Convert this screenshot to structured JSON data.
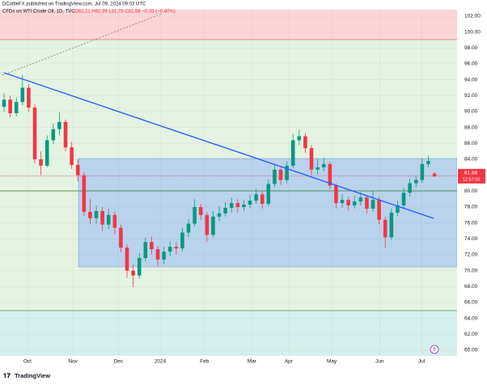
{
  "chart_data": {
    "type": "candlestick",
    "header": "DCottleFX published on TradingView.com, Jul 09, 2024 09:03 UTC",
    "symbol": "CFDs on WTI Crude Oil, 1D, TVC",
    "ohlc_legend": "O82.21 H82.39 L81.76 C81.88 −0.33 (−0.40%)",
    "open": [
      90.6,
      91.5,
      89.8,
      91.2,
      93.0,
      90.5,
      84.0,
      83.2,
      86.4,
      87.8,
      88.7,
      85.5,
      83.3,
      82.0,
      77.4,
      76.6,
      77.5,
      75.8,
      77.0,
      75.4,
      72.9,
      70.0,
      69.4,
      71.6,
      73.6,
      72.7,
      71.4,
      72.4,
      73.0,
      72.8,
      74.8,
      75.9,
      78.0,
      77.0,
      74.5,
      76.8,
      77.2,
      77.9,
      78.5,
      78.0,
      78.3,
      78.8,
      79.6,
      78.4,
      80.9,
      82.7,
      81.4,
      83.2,
      86.4,
      86.9,
      85.4,
      82.7,
      83.0,
      83.4,
      80.7,
      78.5,
      78.9,
      78.2,
      78.7,
      79.2,
      77.8,
      78.9,
      76.4,
      74.2,
      77.3,
      78.2,
      79.8,
      81.0,
      81.4,
      83.4,
      82.21
    ],
    "high": [
      92.3,
      92.0,
      91.8,
      94.6,
      93.5,
      90.9,
      85.0,
      87.0,
      88.5,
      89.9,
      89.0,
      86.2,
      84.0,
      82.4,
      79.0,
      78.2,
      78.0,
      77.8,
      77.4,
      75.8,
      73.3,
      70.8,
      72.2,
      74.2,
      74.3,
      73.1,
      73.0,
      73.7,
      73.6,
      75.4,
      76.5,
      79.0,
      78.4,
      77.4,
      77.5,
      78.1,
      78.6,
      79.2,
      79.0,
      78.9,
      79.5,
      80.3,
      80.0,
      81.5,
      83.3,
      83.0,
      83.8,
      87.2,
      87.7,
      87.3,
      85.8,
      84.0,
      84.2,
      83.7,
      81.0,
      79.6,
      79.3,
      79.4,
      79.9,
      79.5,
      80.0,
      79.3,
      76.8,
      77.8,
      78.8,
      80.4,
      81.6,
      82.0,
      84.1,
      84.5,
      82.39
    ],
    "low": [
      90.0,
      89.3,
      89.4,
      90.8,
      90.0,
      83.5,
      82.0,
      83.0,
      85.9,
      87.0,
      85.0,
      82.8,
      81.2,
      76.9,
      75.8,
      75.9,
      75.0,
      75.2,
      74.6,
      72.3,
      69.1,
      67.9,
      69.0,
      71.2,
      72.0,
      70.6,
      70.8,
      71.8,
      72.0,
      72.4,
      74.2,
      75.6,
      76.4,
      73.6,
      74.2,
      76.2,
      76.8,
      77.3,
      77.3,
      77.5,
      77.9,
      78.4,
      77.8,
      78.1,
      80.5,
      80.8,
      81.0,
      82.9,
      85.8,
      84.8,
      82.0,
      82.1,
      82.5,
      80.2,
      77.8,
      77.9,
      77.6,
      77.8,
      78.2,
      77.2,
      77.4,
      75.8,
      72.9,
      73.9,
      76.9,
      77.8,
      79.3,
      80.5,
      81.0,
      83.0,
      81.76
    ],
    "close": [
      91.5,
      89.8,
      91.2,
      93.0,
      90.5,
      84.0,
      83.2,
      86.4,
      87.8,
      88.7,
      85.5,
      83.3,
      82.0,
      77.4,
      76.6,
      77.5,
      75.8,
      77.0,
      75.4,
      72.9,
      70.0,
      69.4,
      71.6,
      73.6,
      72.7,
      71.4,
      72.4,
      73.0,
      72.8,
      74.8,
      75.9,
      78.0,
      77.0,
      74.5,
      76.8,
      77.2,
      77.9,
      78.5,
      78.0,
      78.3,
      78.8,
      79.6,
      78.4,
      80.9,
      82.7,
      81.4,
      83.2,
      86.4,
      86.9,
      85.4,
      82.7,
      83.0,
      83.4,
      80.7,
      78.5,
      78.9,
      78.2,
      78.7,
      79.2,
      77.8,
      78.9,
      76.4,
      74.2,
      77.3,
      78.2,
      79.8,
      81.0,
      81.4,
      83.4,
      83.8,
      81.88
    ],
    "colors": {
      "up": "#089981",
      "down": "#f23645"
    },
    "xlim": [
      -0.66,
      73.68
    ],
    "xticks": [
      {
        "value": 3.8,
        "label": "Oct"
      },
      {
        "value": 11.2,
        "label": "Nov"
      },
      {
        "value": 18.6,
        "label": "Dec"
      },
      {
        "value": 25.4,
        "label": "2024"
      },
      {
        "value": 32.6,
        "label": "Feb"
      },
      {
        "value": 40.3,
        "label": "Mar"
      },
      {
        "value": 46.3,
        "label": "Apr"
      },
      {
        "value": 53.3,
        "label": "May"
      },
      {
        "value": 61.1,
        "label": "Jun"
      },
      {
        "value": 67.9,
        "label": "Jul"
      }
    ],
    "ylim": [
      59.29,
      102.81
    ],
    "yticks": [
      {
        "value": 102,
        "label": "102.00"
      },
      {
        "value": 100,
        "label": "100.00"
      },
      {
        "value": 98,
        "label": "98.00"
      },
      {
        "value": 96,
        "label": "96.00"
      },
      {
        "value": 94,
        "label": "94.00"
      },
      {
        "value": 92,
        "label": "92.00"
      },
      {
        "value": 90,
        "label": "90.00"
      },
      {
        "value": 88,
        "label": "88.00"
      },
      {
        "value": 86,
        "label": "86.00"
      },
      {
        "value": 84,
        "label": "84.00"
      },
      {
        "value": 82,
        "label": "82.00"
      },
      {
        "value": 80,
        "label": "80.00"
      },
      {
        "value": 78,
        "label": "78.00"
      },
      {
        "value": 76,
        "label": "76.00"
      },
      {
        "value": 74,
        "label": "74.00"
      },
      {
        "value": 72,
        "label": "72.00"
      },
      {
        "value": 70,
        "label": "70.00"
      },
      {
        "value": 68,
        "label": "68.00"
      },
      {
        "value": 66,
        "label": "66.00"
      },
      {
        "value": 64,
        "label": "64.00"
      },
      {
        "value": 62,
        "label": "62.00"
      },
      {
        "value": 60,
        "label": "60.00"
      }
    ],
    "last_price": 81.88,
    "countdown": "12:57:00",
    "event_badge": "6",
    "logo": "TradingView"
  }
}
